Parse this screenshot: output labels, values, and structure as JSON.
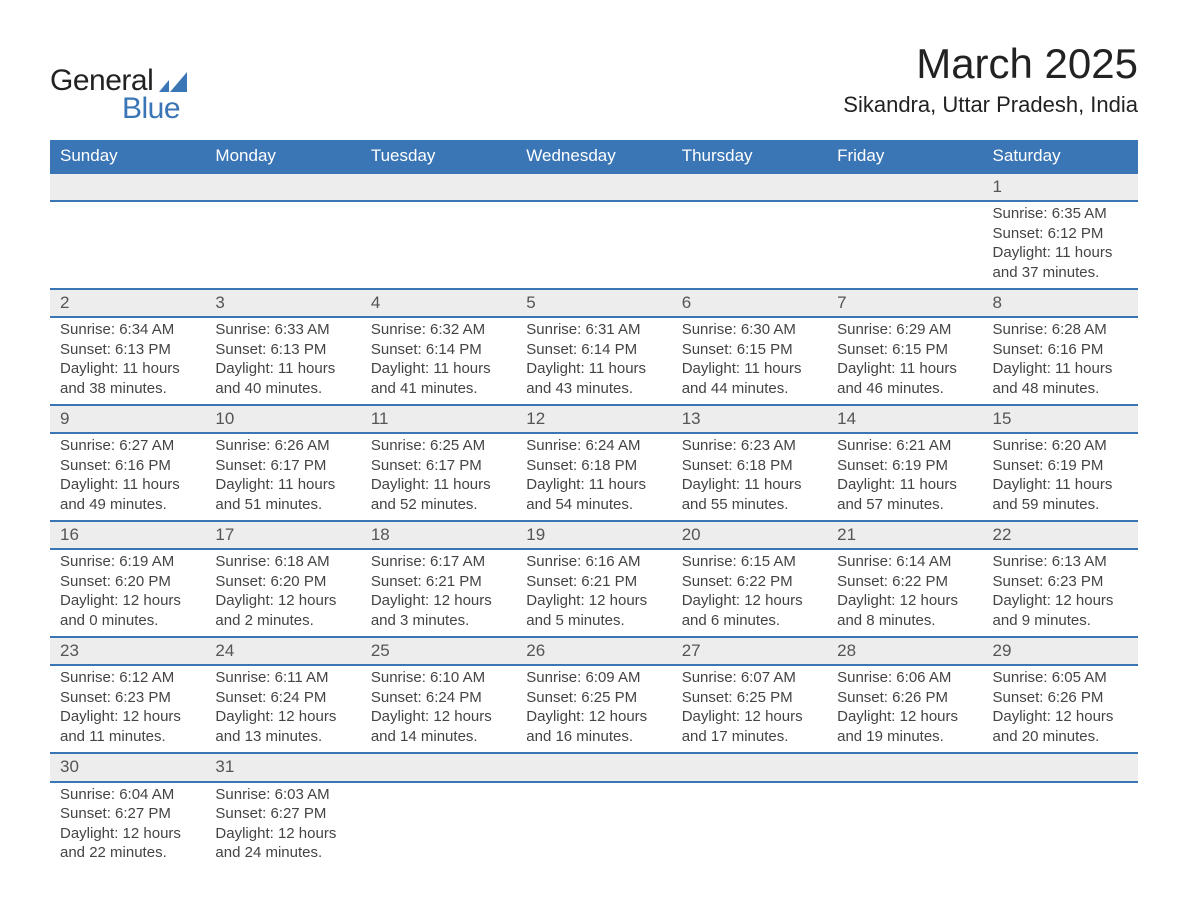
{
  "logo": {
    "word1": "General",
    "word2": "Blue",
    "brand_color": "#3a75b5"
  },
  "title": "March 2025",
  "location": "Sikandra, Uttar Pradesh, India",
  "colors": {
    "header_bg": "#3a75b5",
    "header_text": "#ffffff",
    "daynum_bg": "#ededed",
    "row_separator": "#3a75b5",
    "body_text": "#444444",
    "background": "#ffffff"
  },
  "typography": {
    "title_fontsize": 42,
    "location_fontsize": 22,
    "dayheader_fontsize": 17,
    "cell_fontsize": 15
  },
  "layout": {
    "columns": 7,
    "weeks": 6
  },
  "day_headers": [
    "Sunday",
    "Monday",
    "Tuesday",
    "Wednesday",
    "Thursday",
    "Friday",
    "Saturday"
  ],
  "weeks": [
    [
      null,
      null,
      null,
      null,
      null,
      null,
      {
        "n": "1",
        "sunrise": "Sunrise: 6:35 AM",
        "sunset": "Sunset: 6:12 PM",
        "dl1": "Daylight: 11 hours",
        "dl2": "and 37 minutes."
      }
    ],
    [
      {
        "n": "2",
        "sunrise": "Sunrise: 6:34 AM",
        "sunset": "Sunset: 6:13 PM",
        "dl1": "Daylight: 11 hours",
        "dl2": "and 38 minutes."
      },
      {
        "n": "3",
        "sunrise": "Sunrise: 6:33 AM",
        "sunset": "Sunset: 6:13 PM",
        "dl1": "Daylight: 11 hours",
        "dl2": "and 40 minutes."
      },
      {
        "n": "4",
        "sunrise": "Sunrise: 6:32 AM",
        "sunset": "Sunset: 6:14 PM",
        "dl1": "Daylight: 11 hours",
        "dl2": "and 41 minutes."
      },
      {
        "n": "5",
        "sunrise": "Sunrise: 6:31 AM",
        "sunset": "Sunset: 6:14 PM",
        "dl1": "Daylight: 11 hours",
        "dl2": "and 43 minutes."
      },
      {
        "n": "6",
        "sunrise": "Sunrise: 6:30 AM",
        "sunset": "Sunset: 6:15 PM",
        "dl1": "Daylight: 11 hours",
        "dl2": "and 44 minutes."
      },
      {
        "n": "7",
        "sunrise": "Sunrise: 6:29 AM",
        "sunset": "Sunset: 6:15 PM",
        "dl1": "Daylight: 11 hours",
        "dl2": "and 46 minutes."
      },
      {
        "n": "8",
        "sunrise": "Sunrise: 6:28 AM",
        "sunset": "Sunset: 6:16 PM",
        "dl1": "Daylight: 11 hours",
        "dl2": "and 48 minutes."
      }
    ],
    [
      {
        "n": "9",
        "sunrise": "Sunrise: 6:27 AM",
        "sunset": "Sunset: 6:16 PM",
        "dl1": "Daylight: 11 hours",
        "dl2": "and 49 minutes."
      },
      {
        "n": "10",
        "sunrise": "Sunrise: 6:26 AM",
        "sunset": "Sunset: 6:17 PM",
        "dl1": "Daylight: 11 hours",
        "dl2": "and 51 minutes."
      },
      {
        "n": "11",
        "sunrise": "Sunrise: 6:25 AM",
        "sunset": "Sunset: 6:17 PM",
        "dl1": "Daylight: 11 hours",
        "dl2": "and 52 minutes."
      },
      {
        "n": "12",
        "sunrise": "Sunrise: 6:24 AM",
        "sunset": "Sunset: 6:18 PM",
        "dl1": "Daylight: 11 hours",
        "dl2": "and 54 minutes."
      },
      {
        "n": "13",
        "sunrise": "Sunrise: 6:23 AM",
        "sunset": "Sunset: 6:18 PM",
        "dl1": "Daylight: 11 hours",
        "dl2": "and 55 minutes."
      },
      {
        "n": "14",
        "sunrise": "Sunrise: 6:21 AM",
        "sunset": "Sunset: 6:19 PM",
        "dl1": "Daylight: 11 hours",
        "dl2": "and 57 minutes."
      },
      {
        "n": "15",
        "sunrise": "Sunrise: 6:20 AM",
        "sunset": "Sunset: 6:19 PM",
        "dl1": "Daylight: 11 hours",
        "dl2": "and 59 minutes."
      }
    ],
    [
      {
        "n": "16",
        "sunrise": "Sunrise: 6:19 AM",
        "sunset": "Sunset: 6:20 PM",
        "dl1": "Daylight: 12 hours",
        "dl2": "and 0 minutes."
      },
      {
        "n": "17",
        "sunrise": "Sunrise: 6:18 AM",
        "sunset": "Sunset: 6:20 PM",
        "dl1": "Daylight: 12 hours",
        "dl2": "and 2 minutes."
      },
      {
        "n": "18",
        "sunrise": "Sunrise: 6:17 AM",
        "sunset": "Sunset: 6:21 PM",
        "dl1": "Daylight: 12 hours",
        "dl2": "and 3 minutes."
      },
      {
        "n": "19",
        "sunrise": "Sunrise: 6:16 AM",
        "sunset": "Sunset: 6:21 PM",
        "dl1": "Daylight: 12 hours",
        "dl2": "and 5 minutes."
      },
      {
        "n": "20",
        "sunrise": "Sunrise: 6:15 AM",
        "sunset": "Sunset: 6:22 PM",
        "dl1": "Daylight: 12 hours",
        "dl2": "and 6 minutes."
      },
      {
        "n": "21",
        "sunrise": "Sunrise: 6:14 AM",
        "sunset": "Sunset: 6:22 PM",
        "dl1": "Daylight: 12 hours",
        "dl2": "and 8 minutes."
      },
      {
        "n": "22",
        "sunrise": "Sunrise: 6:13 AM",
        "sunset": "Sunset: 6:23 PM",
        "dl1": "Daylight: 12 hours",
        "dl2": "and 9 minutes."
      }
    ],
    [
      {
        "n": "23",
        "sunrise": "Sunrise: 6:12 AM",
        "sunset": "Sunset: 6:23 PM",
        "dl1": "Daylight: 12 hours",
        "dl2": "and 11 minutes."
      },
      {
        "n": "24",
        "sunrise": "Sunrise: 6:11 AM",
        "sunset": "Sunset: 6:24 PM",
        "dl1": "Daylight: 12 hours",
        "dl2": "and 13 minutes."
      },
      {
        "n": "25",
        "sunrise": "Sunrise: 6:10 AM",
        "sunset": "Sunset: 6:24 PM",
        "dl1": "Daylight: 12 hours",
        "dl2": "and 14 minutes."
      },
      {
        "n": "26",
        "sunrise": "Sunrise: 6:09 AM",
        "sunset": "Sunset: 6:25 PM",
        "dl1": "Daylight: 12 hours",
        "dl2": "and 16 minutes."
      },
      {
        "n": "27",
        "sunrise": "Sunrise: 6:07 AM",
        "sunset": "Sunset: 6:25 PM",
        "dl1": "Daylight: 12 hours",
        "dl2": "and 17 minutes."
      },
      {
        "n": "28",
        "sunrise": "Sunrise: 6:06 AM",
        "sunset": "Sunset: 6:26 PM",
        "dl1": "Daylight: 12 hours",
        "dl2": "and 19 minutes."
      },
      {
        "n": "29",
        "sunrise": "Sunrise: 6:05 AM",
        "sunset": "Sunset: 6:26 PM",
        "dl1": "Daylight: 12 hours",
        "dl2": "and 20 minutes."
      }
    ],
    [
      {
        "n": "30",
        "sunrise": "Sunrise: 6:04 AM",
        "sunset": "Sunset: 6:27 PM",
        "dl1": "Daylight: 12 hours",
        "dl2": "and 22 minutes."
      },
      {
        "n": "31",
        "sunrise": "Sunrise: 6:03 AM",
        "sunset": "Sunset: 6:27 PM",
        "dl1": "Daylight: 12 hours",
        "dl2": "and 24 minutes."
      },
      null,
      null,
      null,
      null,
      null
    ]
  ]
}
